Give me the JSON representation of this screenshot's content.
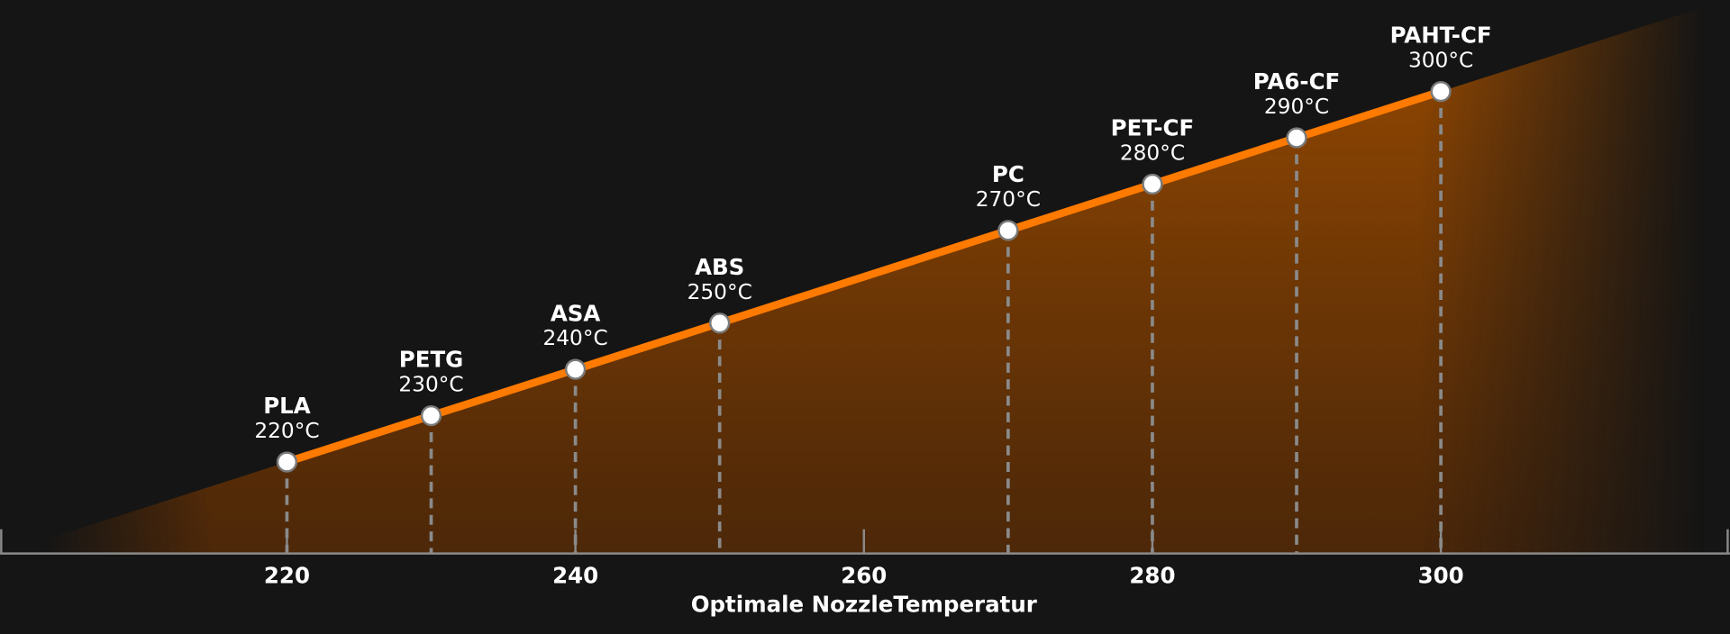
{
  "chart_data": {
    "type": "line",
    "title": "",
    "xlabel": "Optimale NozzleTemperatur",
    "ylabel": "",
    "xlim": [
      200,
      320
    ],
    "x_ticks": [
      220,
      240,
      260,
      280,
      300
    ],
    "points": [
      {
        "label": "PLA",
        "value": 220,
        "text": "220°C"
      },
      {
        "label": "PETG",
        "value": 230,
        "text": "230°C"
      },
      {
        "label": "ASA",
        "value": 240,
        "text": "240°C"
      },
      {
        "label": "ABS",
        "value": 250,
        "text": "250°C"
      },
      {
        "label": "PC",
        "value": 270,
        "text": "270°C"
      },
      {
        "label": "PET-CF",
        "value": 280,
        "text": "280°C"
      },
      {
        "label": "PA6-CF",
        "value": 290,
        "text": "290°C"
      },
      {
        "label": "PAHT-CF",
        "value": 300,
        "text": "300°C"
      }
    ],
    "colors": {
      "line": "#ff7a00",
      "background": "#151515",
      "axis": "#8a8a8a"
    }
  }
}
